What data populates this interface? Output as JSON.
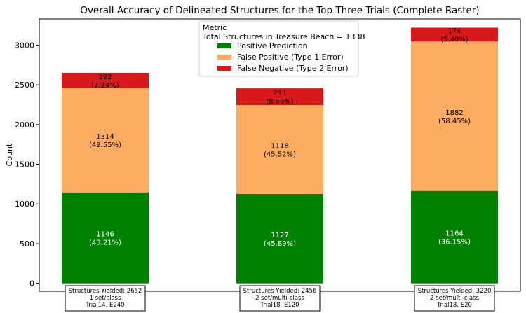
{
  "chart_data": {
    "type": "bar",
    "stacked": true,
    "title": "Overall Accuracy of Delineated Structures for the Top Three Trials (Complete Raster)",
    "xlabel": "",
    "ylabel": "Count",
    "ylim": [
      -100,
      3330
    ],
    "yticks": [
      0,
      500,
      1000,
      1500,
      2000,
      2500,
      3000
    ],
    "grid": false,
    "legend": {
      "placement": "top-center",
      "title_line1": "Metric",
      "title_line2": "Total Structures in Treasure Beach = 1338"
    },
    "categories": [
      {
        "line1": "Structures Yielded: 2652",
        "line2": "1 set/class",
        "line3": "Trial14, E240"
      },
      {
        "line1": "Structures Yielded: 2456",
        "line2": "2 set/multi-class",
        "line3": "Trial18, E120"
      },
      {
        "line1": "Structures Yielded: 3220",
        "line2": "2 set/multi-class",
        "line3": "Trial18, E20"
      }
    ],
    "series": [
      {
        "name": "Positive Prediction",
        "color": "#008000",
        "label_color": "#ffffff",
        "values": [
          1146,
          1127,
          1164
        ],
        "percents": [
          "(43.21%)",
          "(45.89%)",
          "(36.15%)"
        ]
      },
      {
        "name": "False Positive (Type 1 Error)",
        "color": "#fdad62",
        "label_color": "#000000",
        "values": [
          1314,
          1118,
          1882
        ],
        "percents": [
          "(49.55%)",
          "(45.52%)",
          "(58.45%)"
        ]
      },
      {
        "name": "False Negative (Type 2 Error)",
        "color": "#d7191c",
        "label_color": "#000000",
        "values": [
          192,
          211,
          174
        ],
        "percents": [
          "(7.24%)",
          "(8.59%)",
          "(5.40%)"
        ]
      }
    ]
  }
}
